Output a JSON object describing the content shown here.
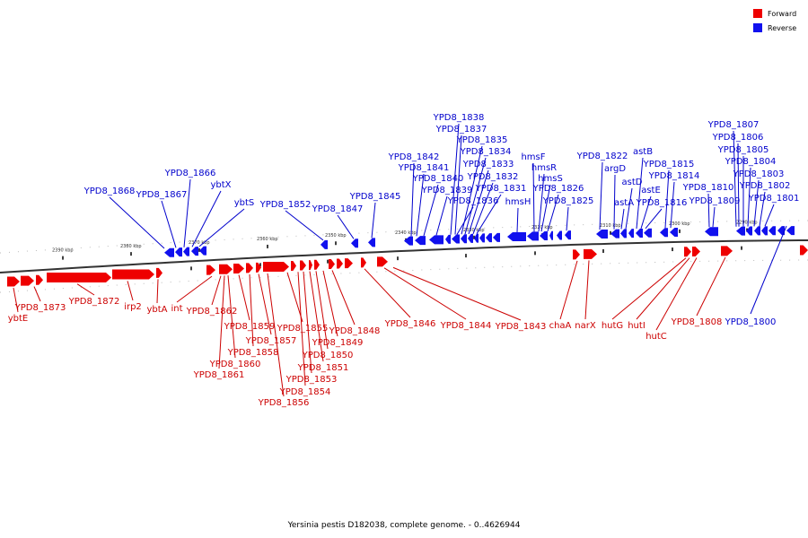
{
  "legend": [
    {
      "label": "Forward",
      "color": "#ee0000"
    },
    {
      "label": "Reverse",
      "color": "#1111ee"
    }
  ],
  "caption": "Yersinia pestis D182038, complete genome. - 0..4626944",
  "scale_ticks": [
    {
      "label": "2390 kbp",
      "kbp": 2390
    },
    {
      "label": "2380 kbp",
      "kbp": 2380
    },
    {
      "label": "2370 kbp",
      "kbp": 2370
    },
    {
      "label": "2360 kbp",
      "kbp": 2360
    },
    {
      "label": "2350 kbp",
      "kbp": 2350
    },
    {
      "label": "2340 kbp",
      "kbp": 2340
    },
    {
      "label": "2330 kbp",
      "kbp": 2330
    },
    {
      "label": "2320 kbp",
      "kbp": 2320
    },
    {
      "label": "2310 kbp",
      "kbp": 2310
    },
    {
      "label": "2300 kbp",
      "kbp": 2300
    },
    {
      "label": "2290 kbp",
      "kbp": 2290
    }
  ],
  "reverse_genes": [
    {
      "label": "YPD8_1868"
    },
    {
      "label": "YPD8_1867"
    },
    {
      "label": "YPD8_1866"
    },
    {
      "label": "ybtX"
    },
    {
      "label": "ybtS"
    },
    {
      "label": "YPD8_1852"
    },
    {
      "label": "YPD8_1847"
    },
    {
      "label": "YPD8_1845"
    },
    {
      "label": "YPD8_1842"
    },
    {
      "label": "YPD8_1841"
    },
    {
      "label": "YPD8_1840"
    },
    {
      "label": "YPD8_1839"
    },
    {
      "label": "YPD8_1838"
    },
    {
      "label": "YPD8_1837"
    },
    {
      "label": "YPD8_1836"
    },
    {
      "label": "YPD8_1835"
    },
    {
      "label": "YPD8_1834"
    },
    {
      "label": "YPD8_1833"
    },
    {
      "label": "YPD8_1832"
    },
    {
      "label": "YPD8_1831"
    },
    {
      "label": "hmsH"
    },
    {
      "label": "hmsF"
    },
    {
      "label": "hmsR"
    },
    {
      "label": "hmsS"
    },
    {
      "label": "YPD8_1826"
    },
    {
      "label": "YPD8_1825"
    },
    {
      "label": "YPD8_1822"
    },
    {
      "label": "argD"
    },
    {
      "label": "astA"
    },
    {
      "label": "astD"
    },
    {
      "label": "astB"
    },
    {
      "label": "astE"
    },
    {
      "label": "YPD8_1816"
    },
    {
      "label": "YPD8_1815"
    },
    {
      "label": "YPD8_1814"
    },
    {
      "label": "YPD8_1810"
    },
    {
      "label": "YPD8_1809"
    },
    {
      "label": "YPD8_1807"
    },
    {
      "label": "YPD8_1806"
    },
    {
      "label": "YPD8_1805"
    },
    {
      "label": "YPD8_1804"
    },
    {
      "label": "YPD8_1803"
    },
    {
      "label": "YPD8_1802"
    },
    {
      "label": "YPD8_1801"
    },
    {
      "label": "YPD8_1800"
    }
  ],
  "forward_genes": [
    {
      "label": "YPD8_1873"
    },
    {
      "label": "ybtE"
    },
    {
      "label": "YPD8_1872"
    },
    {
      "label": "irp2"
    },
    {
      "label": "ybtA"
    },
    {
      "label": "int"
    },
    {
      "label": "YPD8_1862"
    },
    {
      "label": "YPD8_1861"
    },
    {
      "label": "YPD8_1860"
    },
    {
      "label": "YPD8_1859"
    },
    {
      "label": "YPD8_1858"
    },
    {
      "label": "YPD8_1857"
    },
    {
      "label": "YPD8_1856"
    },
    {
      "label": "YPD8_1855"
    },
    {
      "label": "YPD8_1854"
    },
    {
      "label": "YPD8_1853"
    },
    {
      "label": "YPD8_1851"
    },
    {
      "label": "YPD8_1850"
    },
    {
      "label": "YPD8_1849"
    },
    {
      "label": "YPD8_1848"
    },
    {
      "label": "YPD8_1846"
    },
    {
      "label": "YPD8_1844"
    },
    {
      "label": "YPD8_1843"
    },
    {
      "label": "chaA"
    },
    {
      "label": "narX"
    },
    {
      "label": "hutG"
    },
    {
      "label": "hutI"
    },
    {
      "label": "hutC"
    },
    {
      "label": "YPD8_1808"
    }
  ]
}
